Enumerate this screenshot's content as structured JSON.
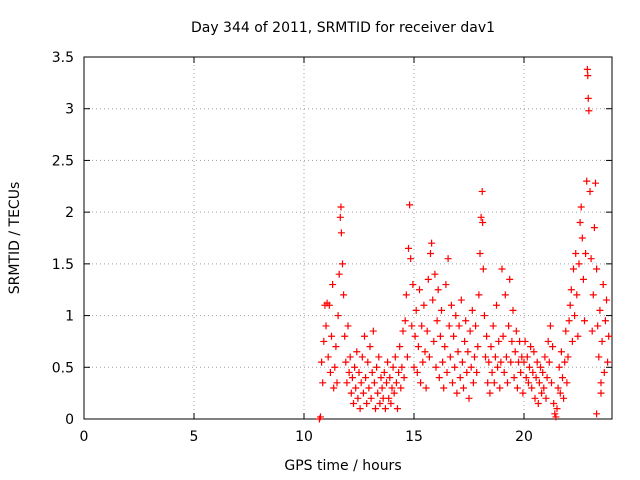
{
  "chart_data": {
    "type": "scatter",
    "title": "Day 344 of 2011, SRMTID for receiver dav1",
    "xlabel": "GPS time / hours",
    "ylabel": "SRMTID / TECUs",
    "xlim": [
      0,
      24
    ],
    "ylim": [
      0,
      3.5
    ],
    "x_ticks": [
      0,
      5,
      10,
      15,
      20
    ],
    "y_ticks": [
      0,
      0.5,
      1,
      1.5,
      2,
      2.5,
      3,
      3.5
    ],
    "grid": true,
    "marker": "+",
    "series_color": "#ff0000",
    "series": [
      {
        "name": "SRMTID",
        "points": [
          [
            10.7,
            0.0
          ],
          [
            10.75,
            0.02
          ],
          [
            10.8,
            0.55
          ],
          [
            10.85,
            0.35
          ],
          [
            10.9,
            0.75
          ],
          [
            10.95,
            1.1
          ],
          [
            11.0,
            0.9
          ],
          [
            11.05,
            1.12
          ],
          [
            11.1,
            0.6
          ],
          [
            11.15,
            1.1
          ],
          [
            11.2,
            0.45
          ],
          [
            11.25,
            0.8
          ],
          [
            11.3,
            1.3
          ],
          [
            11.35,
            0.3
          ],
          [
            11.4,
            0.5
          ],
          [
            11.45,
            0.7
          ],
          [
            11.5,
            0.35
          ],
          [
            11.55,
            1.0
          ],
          [
            11.6,
            1.4
          ],
          [
            11.65,
            1.95
          ],
          [
            11.68,
            2.05
          ],
          [
            11.7,
            1.8
          ],
          [
            11.75,
            1.5
          ],
          [
            11.8,
            1.2
          ],
          [
            11.85,
            0.8
          ],
          [
            11.9,
            0.55
          ],
          [
            11.95,
            0.35
          ],
          [
            12.0,
            0.9
          ],
          [
            12.05,
            0.45
          ],
          [
            12.1,
            0.6
          ],
          [
            12.15,
            0.25
          ],
          [
            12.2,
            0.4
          ],
          [
            12.25,
            0.15
          ],
          [
            12.3,
            0.5
          ],
          [
            12.35,
            0.3
          ],
          [
            12.4,
            0.65
          ],
          [
            12.45,
            0.2
          ],
          [
            12.5,
            0.45
          ],
          [
            12.55,
            0.1
          ],
          [
            12.6,
            0.35
          ],
          [
            12.65,
            0.6
          ],
          [
            12.7,
            0.25
          ],
          [
            12.75,
            0.8
          ],
          [
            12.8,
            0.4
          ],
          [
            12.85,
            0.15
          ],
          [
            12.9,
            0.55
          ],
          [
            12.95,
            0.3
          ],
          [
            13.0,
            0.7
          ],
          [
            13.05,
            0.2
          ],
          [
            13.1,
            0.45
          ],
          [
            13.15,
            0.85
          ],
          [
            13.2,
            0.35
          ],
          [
            13.25,
            0.1
          ],
          [
            13.3,
            0.5
          ],
          [
            13.35,
            0.25
          ],
          [
            13.4,
            0.6
          ],
          [
            13.45,
            0.15
          ],
          [
            13.5,
            0.4
          ],
          [
            13.55,
            0.3
          ],
          [
            13.6,
            0.2
          ],
          [
            13.65,
            0.45
          ],
          [
            13.7,
            0.1
          ],
          [
            13.75,
            0.35
          ],
          [
            13.8,
            0.55
          ],
          [
            13.85,
            0.2
          ],
          [
            13.9,
            0.4
          ],
          [
            13.95,
            0.15
          ],
          [
            14.0,
            0.3
          ],
          [
            14.05,
            0.5
          ],
          [
            14.1,
            0.25
          ],
          [
            14.15,
            0.6
          ],
          [
            14.2,
            0.35
          ],
          [
            14.25,
            0.1
          ],
          [
            14.3,
            0.45
          ],
          [
            14.35,
            0.7
          ],
          [
            14.4,
            0.3
          ],
          [
            14.45,
            0.5
          ],
          [
            14.5,
            0.85
          ],
          [
            14.55,
            0.4
          ],
          [
            14.6,
            0.95
          ],
          [
            14.65,
            1.2
          ],
          [
            14.7,
            0.6
          ],
          [
            14.75,
            1.65
          ],
          [
            14.8,
            2.07
          ],
          [
            14.85,
            1.55
          ],
          [
            14.9,
            0.9
          ],
          [
            14.95,
            1.3
          ],
          [
            15.0,
            0.5
          ],
          [
            15.05,
            0.8
          ],
          [
            15.1,
            1.05
          ],
          [
            15.15,
            0.45
          ],
          [
            15.2,
            0.7
          ],
          [
            15.25,
            1.25
          ],
          [
            15.3,
            0.35
          ],
          [
            15.35,
            0.9
          ],
          [
            15.4,
            0.55
          ],
          [
            15.45,
            1.1
          ],
          [
            15.5,
            0.65
          ],
          [
            15.55,
            0.3
          ],
          [
            15.6,
            0.85
          ],
          [
            15.65,
            1.35
          ],
          [
            15.7,
            0.6
          ],
          [
            15.75,
            1.6
          ],
          [
            15.8,
            1.7
          ],
          [
            15.85,
            1.15
          ],
          [
            15.9,
            0.75
          ],
          [
            15.95,
            1.4
          ],
          [
            16.0,
            0.5
          ],
          [
            16.05,
            0.95
          ],
          [
            16.1,
            1.25
          ],
          [
            16.15,
            0.4
          ],
          [
            16.2,
            0.8
          ],
          [
            16.25,
            1.05
          ],
          [
            16.3,
            0.55
          ],
          [
            16.35,
            0.3
          ],
          [
            16.4,
            0.7
          ],
          [
            16.45,
            1.3
          ],
          [
            16.5,
            0.45
          ],
          [
            16.55,
            1.55
          ],
          [
            16.6,
            0.9
          ],
          [
            16.65,
            0.6
          ],
          [
            16.7,
            1.1
          ],
          [
            16.75,
            0.35
          ],
          [
            16.8,
            0.8
          ],
          [
            16.85,
            0.5
          ],
          [
            16.9,
            1.0
          ],
          [
            16.95,
            0.25
          ],
          [
            17.0,
            0.65
          ],
          [
            17.05,
            0.9
          ],
          [
            17.1,
            0.4
          ],
          [
            17.15,
            1.15
          ],
          [
            17.2,
            0.55
          ],
          [
            17.25,
            0.3
          ],
          [
            17.3,
            0.75
          ],
          [
            17.35,
            0.95
          ],
          [
            17.4,
            0.45
          ],
          [
            17.45,
            0.65
          ],
          [
            17.5,
            0.2
          ],
          [
            17.55,
            0.85
          ],
          [
            17.6,
            0.5
          ],
          [
            17.65,
            1.05
          ],
          [
            17.7,
            0.35
          ],
          [
            17.75,
            0.6
          ],
          [
            17.8,
            0.9
          ],
          [
            17.85,
            0.45
          ],
          [
            17.9,
            0.7
          ],
          [
            17.95,
            1.2
          ],
          [
            18.0,
            1.6
          ],
          [
            18.05,
            1.95
          ],
          [
            18.1,
            2.2
          ],
          [
            18.12,
            1.9
          ],
          [
            18.15,
            1.45
          ],
          [
            18.2,
            1.0
          ],
          [
            18.25,
            0.6
          ],
          [
            18.3,
            0.8
          ],
          [
            18.35,
            0.35
          ],
          [
            18.4,
            0.55
          ],
          [
            18.45,
            0.25
          ],
          [
            18.5,
            0.7
          ],
          [
            18.55,
            0.45
          ],
          [
            18.6,
            0.9
          ],
          [
            18.65,
            0.35
          ],
          [
            18.7,
            0.6
          ],
          [
            18.75,
            1.1
          ],
          [
            18.8,
            0.5
          ],
          [
            18.85,
            0.75
          ],
          [
            18.9,
            0.3
          ],
          [
            18.95,
            0.55
          ],
          [
            19.0,
            1.45
          ],
          [
            19.05,
            0.8
          ],
          [
            19.1,
            0.45
          ],
          [
            19.15,
            1.2
          ],
          [
            19.2,
            0.6
          ],
          [
            19.25,
            0.35
          ],
          [
            19.3,
            0.9
          ],
          [
            19.35,
            1.35
          ],
          [
            19.4,
            0.55
          ],
          [
            19.45,
            0.75
          ],
          [
            19.5,
            1.05
          ],
          [
            19.55,
            0.4
          ],
          [
            19.6,
            0.65
          ],
          [
            19.65,
            0.85
          ],
          [
            19.7,
            0.3
          ],
          [
            19.75,
            0.55
          ],
          [
            19.8,
            0.75
          ],
          [
            19.85,
            0.45
          ],
          [
            19.9,
            0.6
          ],
          [
            19.95,
            0.25
          ],
          [
            20.0,
            0.55
          ],
          [
            20.05,
            0.75
          ],
          [
            20.1,
            0.4
          ],
          [
            20.15,
            0.6
          ],
          [
            20.2,
            0.35
          ],
          [
            20.25,
            0.5
          ],
          [
            20.3,
            0.7
          ],
          [
            20.35,
            0.3
          ],
          [
            20.4,
            0.45
          ],
          [
            20.45,
            0.65
          ],
          [
            20.5,
            0.2
          ],
          [
            20.55,
            0.4
          ],
          [
            20.6,
            0.55
          ],
          [
            20.65,
            0.15
          ],
          [
            20.7,
            0.35
          ],
          [
            20.75,
            0.5
          ],
          [
            20.8,
            0.25
          ],
          [
            20.85,
            0.45
          ],
          [
            20.9,
            0.3
          ],
          [
            20.95,
            0.6
          ],
          [
            21.0,
            0.2
          ],
          [
            21.05,
            0.4
          ],
          [
            21.1,
            0.75
          ],
          [
            21.15,
            0.55
          ],
          [
            21.2,
            0.9
          ],
          [
            21.25,
            0.35
          ],
          [
            21.3,
            0.7
          ],
          [
            21.35,
            0.15
          ],
          [
            21.4,
            0.05
          ],
          [
            21.45,
            0.02
          ],
          [
            21.5,
            0.1
          ],
          [
            21.55,
            0.3
          ],
          [
            21.6,
            0.5
          ],
          [
            21.65,
            0.25
          ],
          [
            21.7,
            0.65
          ],
          [
            21.75,
            0.4
          ],
          [
            21.8,
            0.2
          ],
          [
            21.85,
            0.55
          ],
          [
            21.9,
            0.85
          ],
          [
            21.95,
            0.35
          ],
          [
            22.0,
            0.6
          ],
          [
            22.05,
            0.95
          ],
          [
            22.1,
            1.1
          ],
          [
            22.15,
            1.25
          ],
          [
            22.2,
            0.75
          ],
          [
            22.25,
            1.45
          ],
          [
            22.3,
            1.0
          ],
          [
            22.35,
            1.6
          ],
          [
            22.4,
            1.2
          ],
          [
            22.45,
            0.8
          ],
          [
            22.5,
            1.5
          ],
          [
            22.55,
            1.9
          ],
          [
            22.6,
            2.05
          ],
          [
            22.65,
            1.75
          ],
          [
            22.7,
            1.35
          ],
          [
            22.75,
            0.95
          ],
          [
            22.8,
            1.6
          ],
          [
            22.85,
            2.3
          ],
          [
            22.88,
            3.38
          ],
          [
            22.9,
            3.32
          ],
          [
            22.92,
            3.1
          ],
          [
            22.95,
            2.98
          ],
          [
            23.0,
            2.2
          ],
          [
            23.05,
            1.55
          ],
          [
            23.1,
            0.85
          ],
          [
            23.15,
            1.2
          ],
          [
            23.2,
            1.85
          ],
          [
            23.25,
            2.28
          ],
          [
            23.3,
            1.45
          ],
          [
            23.35,
            0.9
          ],
          [
            23.4,
            0.6
          ],
          [
            23.45,
            1.05
          ],
          [
            23.5,
            0.35
          ],
          [
            23.55,
            0.75
          ],
          [
            23.6,
            1.3
          ],
          [
            23.65,
            0.45
          ],
          [
            23.7,
            0.95
          ],
          [
            23.75,
            1.15
          ],
          [
            23.8,
            0.55
          ],
          [
            23.85,
            0.8
          ],
          [
            23.3,
            0.05
          ],
          [
            23.5,
            0.25
          ]
        ]
      }
    ]
  }
}
